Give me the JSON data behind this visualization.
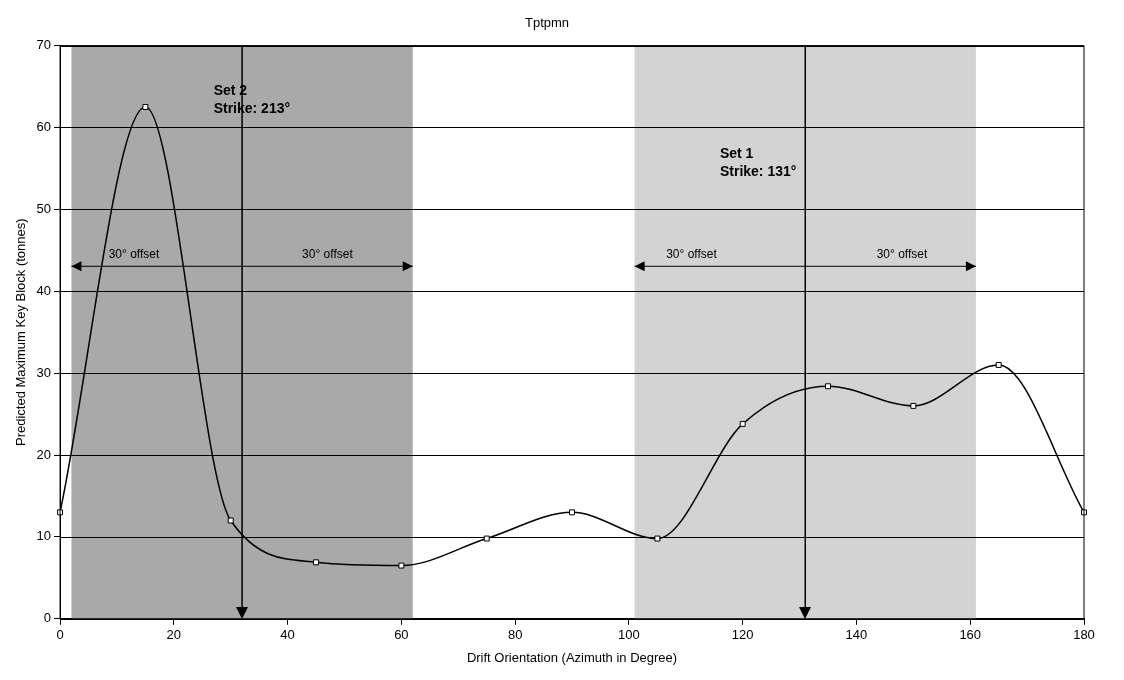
{
  "chart_data": {
    "type": "line",
    "title": "Tptpmn",
    "xlabel": "Drift Orientation (Azimuth in Degree)",
    "ylabel": "Predicted Maximum Key Block (tonnes)",
    "x": [
      0,
      15,
      30,
      45,
      60,
      75,
      90,
      105,
      120,
      135,
      150,
      165,
      180
    ],
    "series": [
      {
        "color": "#000000",
        "values": [
          13,
          62.5,
          12,
          6.9,
          6.5,
          9.8,
          13,
          9.8,
          23.8,
          28.4,
          26,
          31,
          13
        ]
      }
    ],
    "xlim": [
      0,
      180
    ],
    "xticks": [
      0,
      20,
      40,
      60,
      80,
      100,
      120,
      140,
      160,
      180
    ],
    "ylim": [
      0,
      70
    ],
    "yticks": [
      0,
      10,
      20,
      30,
      40,
      50,
      60,
      70
    ],
    "grid": "y",
    "legend": false,
    "marker": "square",
    "line_style": "solid",
    "bands": [
      {
        "axis": "x",
        "from": 2,
        "to": 62,
        "color": "#a9a9a9"
      },
      {
        "axis": "x",
        "from": 101,
        "to": 161,
        "color": "#d3d3d3"
      }
    ],
    "ref_lines": [
      {
        "axis": "x",
        "value": 32,
        "color": "#000000"
      },
      {
        "axis": "x",
        "value": 131,
        "color": "#000000"
      }
    ],
    "annotations": [
      "Set 2\nStrike: 213°",
      "Set 1\nStrike: 131°",
      "30° offset",
      "30° offset",
      "30° offset",
      "30° offset"
    ]
  }
}
